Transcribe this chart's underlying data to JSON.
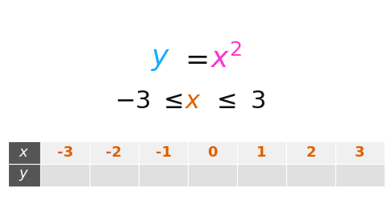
{
  "bg_color": "#ffffff",
  "eq_y_color": "#1aabff",
  "eq_x2_color": "#ff33cc",
  "ineq_x_color": "#e06000",
  "black": "#111111",
  "table_header_bg": "#555555",
  "table_header_fg": "#ffffff",
  "table_x_color": "#e06000",
  "table_x_bg": "#f0f0f0",
  "table_y_bg": "#e0e0e0",
  "table_values": [
    "-3",
    "-2",
    "-1",
    "0",
    "1",
    "2",
    "3"
  ],
  "fig_width": 4.8,
  "fig_height": 2.7,
  "dpi": 100
}
